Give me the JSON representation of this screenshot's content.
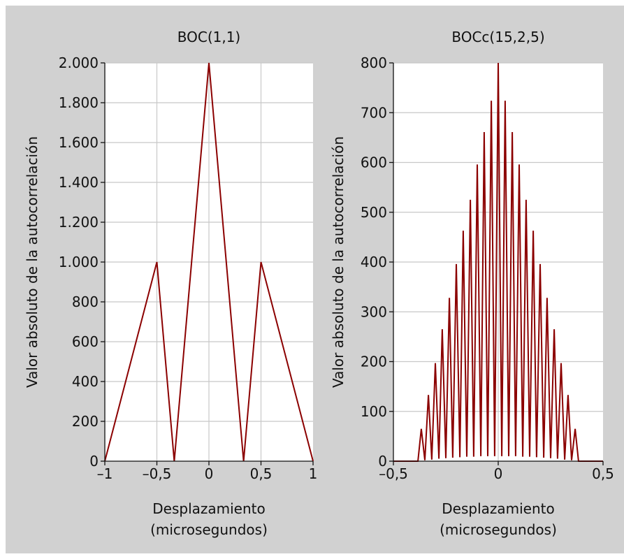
{
  "colors": {
    "figure_background": "#d1d1d1",
    "plot_background": "#ffffff",
    "grid": "#c8c8c8",
    "line": "#8b0000"
  },
  "chart_data": [
    {
      "type": "line",
      "title": "BOC(1,1)",
      "xlabel_line1": "Desplazamiento",
      "xlabel_line2": "(microsegundos)",
      "ylabel": "Valor absoluto de la autocorrelación",
      "xlim": [
        -1,
        1
      ],
      "ylim": [
        0,
        2000
      ],
      "grid": true,
      "xticks": [
        -1,
        -0.5,
        0,
        0.5,
        1
      ],
      "xtick_labels": [
        "–1",
        "–0,5",
        "0",
        "0,5",
        "1"
      ],
      "yticks": [
        0,
        200,
        400,
        600,
        800,
        1000,
        1200,
        1400,
        1600,
        1800,
        2000
      ],
      "ytick_labels": [
        "0",
        "200",
        "400",
        "600",
        "800",
        "1.000",
        "1.200",
        "1.400",
        "1.600",
        "1.800",
        "2.000"
      ],
      "x": [
        -1,
        -0.5,
        -0.333,
        0,
        0.333,
        0.5,
        1
      ],
      "y": [
        0,
        1000,
        0,
        2000,
        0,
        1000,
        0
      ]
    },
    {
      "type": "line",
      "title": "BOCc(15,2,5)",
      "xlabel_line1": "Desplazamiento",
      "xlabel_line2": "(microsegundos)",
      "ylabel": "Valor absoluto de la autocorrelación",
      "xlim": [
        -0.5,
        0.5
      ],
      "ylim": [
        0,
        800
      ],
      "grid": true,
      "xticks": [
        -0.5,
        0,
        0.5
      ],
      "xtick_labels": [
        "–0,5",
        "0",
        "0,5"
      ],
      "yticks": [
        0,
        100,
        200,
        300,
        400,
        500,
        600,
        700,
        800
      ],
      "ytick_labels": [
        "0",
        "100",
        "200",
        "300",
        "400",
        "500",
        "600",
        "700",
        "800"
      ],
      "peak_x": [
        -0.367,
        -0.333,
        -0.3,
        -0.267,
        -0.233,
        -0.2,
        -0.167,
        -0.133,
        -0.1,
        -0.067,
        -0.033,
        0,
        0.033,
        0.067,
        0.1,
        0.133,
        0.167,
        0.2,
        0.233,
        0.267,
        0.3,
        0.333,
        0.367
      ],
      "peak_y": [
        65,
        133,
        197,
        265,
        328,
        396,
        463,
        525,
        596,
        661,
        724,
        800,
        724,
        661,
        596,
        525,
        463,
        396,
        328,
        265,
        197,
        133,
        65
      ],
      "trough_x": [
        -0.383,
        -0.35,
        -0.317,
        -0.283,
        -0.25,
        -0.217,
        -0.183,
        -0.15,
        -0.117,
        -0.083,
        -0.05,
        -0.017,
        0.017,
        0.05,
        0.083,
        0.117,
        0.15,
        0.183,
        0.217,
        0.25,
        0.283,
        0.317,
        0.35,
        0.383
      ],
      "trough_y": [
        0,
        2,
        3,
        5,
        6,
        7,
        8,
        9,
        9,
        10,
        10,
        10,
        10,
        10,
        10,
        9,
        9,
        8,
        7,
        6,
        5,
        3,
        2,
        0
      ]
    }
  ]
}
